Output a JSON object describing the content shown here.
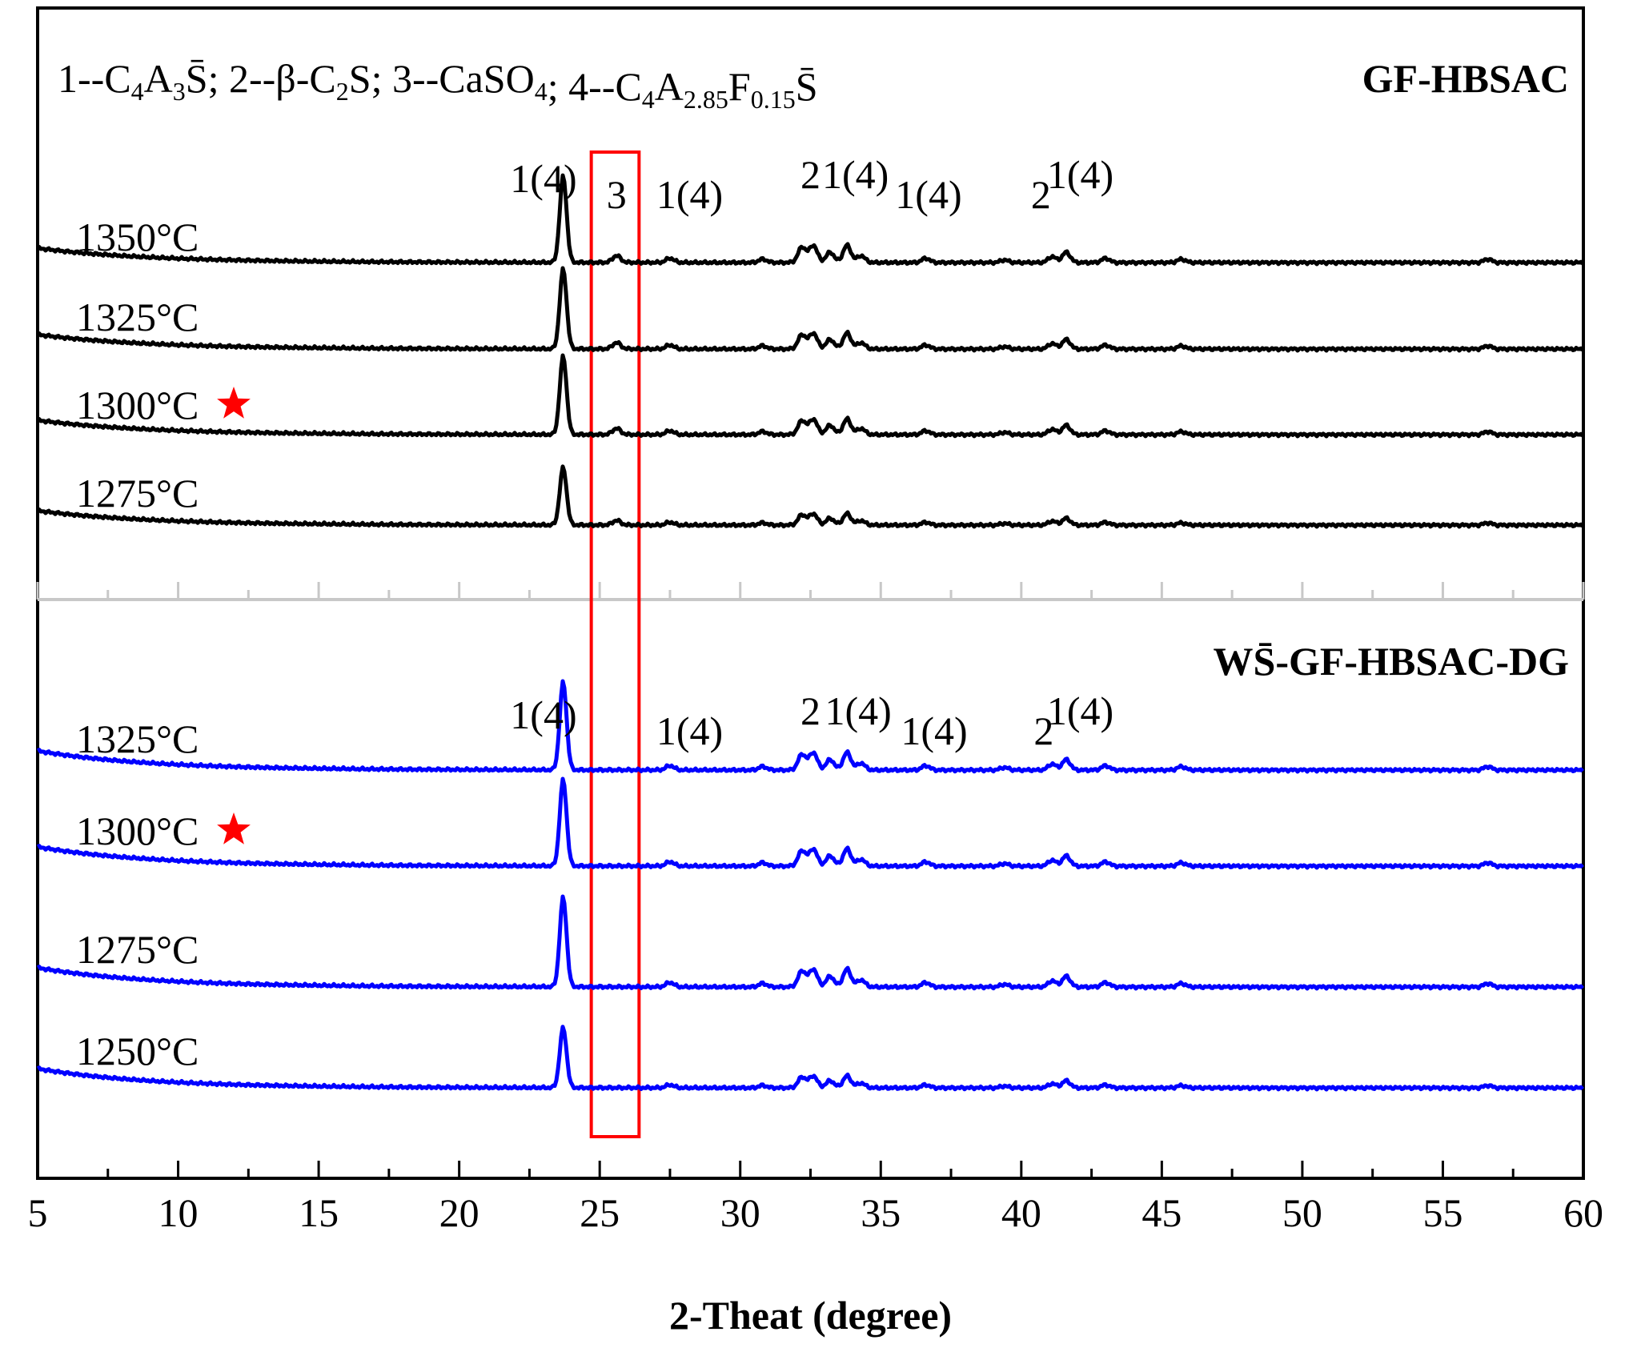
{
  "chart_data": {
    "type": "line",
    "xlabel": "2-Theat (degree)",
    "xlim": [
      5,
      60
    ],
    "x_ticks": [
      "5",
      "10",
      "15",
      "20",
      "25",
      "30",
      "35",
      "40",
      "45",
      "50",
      "55",
      "60"
    ],
    "legend": {
      "entries": [
        {
          "num": "1",
          "formula": "C4A3S̄"
        },
        {
          "num": "2",
          "formula": "β-C2S"
        },
        {
          "num": "3",
          "formula": "CaSO4"
        },
        {
          "num": "4",
          "formula": "C4A2.85F0.15S̄"
        }
      ]
    },
    "highlight_box": {
      "x_range": [
        24.7,
        26.4
      ],
      "label": "CaSO4 region"
    },
    "panels": [
      {
        "title": "GF-HBSAC",
        "line_color": "#000000",
        "series": [
          {
            "name": "1350°C",
            "star": false
          },
          {
            "name": "1325°C",
            "star": false
          },
          {
            "name": "1300°C",
            "star": true
          },
          {
            "name": "1275°C",
            "star": false
          }
        ],
        "peak_labels": [
          {
            "x": 23.0,
            "text": "1(4)"
          },
          {
            "x": 25.6,
            "text": "3"
          },
          {
            "x": 28.2,
            "text": "1(4)"
          },
          {
            "x": 32.5,
            "text": "2"
          },
          {
            "x": 34.1,
            "text": "1(4)"
          },
          {
            "x": 36.7,
            "text": "1(4)"
          },
          {
            "x": 40.7,
            "text": "2"
          },
          {
            "x": 42.1,
            "text": "1(4)"
          }
        ]
      },
      {
        "title": "WS̄-GF-HBSAC-DG",
        "line_color": "#0000ff",
        "series": [
          {
            "name": "1325°C",
            "star": false
          },
          {
            "name": "1300°C",
            "star": true
          },
          {
            "name": "1275°C",
            "star": false
          },
          {
            "name": "1250°C",
            "star": false
          }
        ],
        "peak_labels": [
          {
            "x": 23.0,
            "text": "1(4)"
          },
          {
            "x": 28.2,
            "text": "1(4)"
          },
          {
            "x": 32.5,
            "text": "2"
          },
          {
            "x": 34.2,
            "text": "1(4)"
          },
          {
            "x": 36.9,
            "text": "1(4)"
          },
          {
            "x": 40.8,
            "text": "2"
          },
          {
            "x": 42.1,
            "text": "1(4)"
          }
        ]
      }
    ],
    "peaks_common": [
      {
        "x": 23.7,
        "h": 1.0
      },
      {
        "x": 27.5,
        "h": 0.05
      },
      {
        "x": 30.8,
        "h": 0.04
      },
      {
        "x": 32.2,
        "h": 0.18
      },
      {
        "x": 32.6,
        "h": 0.2
      },
      {
        "x": 33.2,
        "h": 0.12
      },
      {
        "x": 33.8,
        "h": 0.2
      },
      {
        "x": 34.3,
        "h": 0.08
      },
      {
        "x": 36.6,
        "h": 0.05
      },
      {
        "x": 39.4,
        "h": 0.03
      },
      {
        "x": 41.1,
        "h": 0.07
      },
      {
        "x": 41.6,
        "h": 0.12
      },
      {
        "x": 43.0,
        "h": 0.05
      },
      {
        "x": 45.7,
        "h": 0.04
      },
      {
        "x": 56.6,
        "h": 0.04
      }
    ],
    "caso4_peak": {
      "x": 25.6,
      "h": 0.08
    },
    "star_color": "#ff0000"
  }
}
